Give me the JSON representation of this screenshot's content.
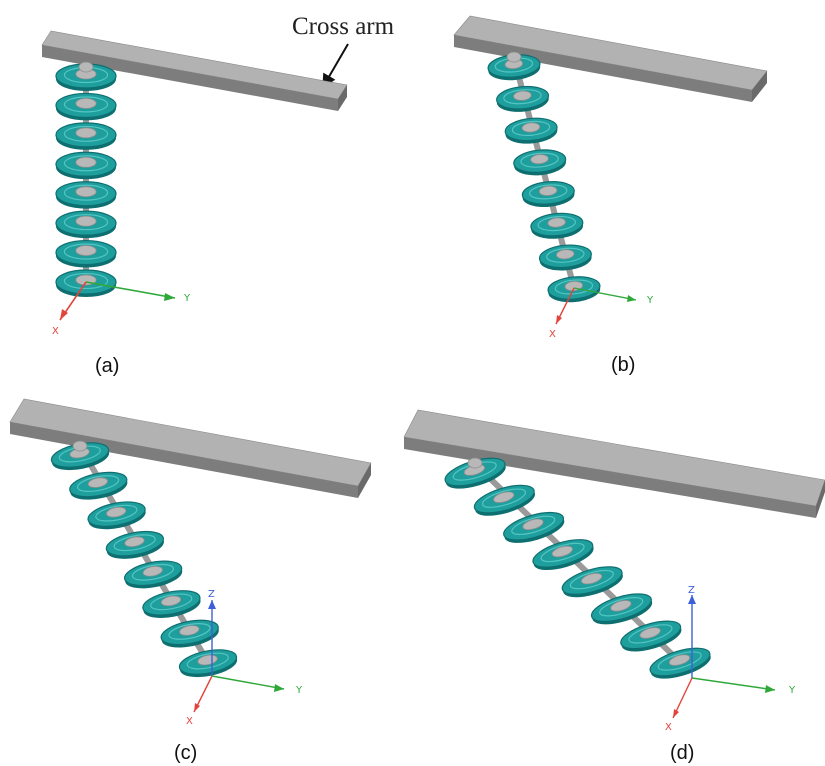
{
  "callout": {
    "text": "Cross arm"
  },
  "panels": [
    {
      "label": "(a)",
      "axes": [
        "Y",
        "X"
      ]
    },
    {
      "label": "(b)",
      "axes": [
        "Y",
        "X"
      ]
    },
    {
      "label": "(c)",
      "axes": [
        "Y",
        "X",
        "Z"
      ]
    },
    {
      "label": "(d)",
      "axes": [
        "Y",
        "X",
        "Z"
      ]
    }
  ],
  "colors": {
    "crossarm_top": "#b2b2b2",
    "crossarm_front": "#7d7d7d",
    "crossarm_end": "#6a6a6a",
    "disc_fill": "#1f9e9e",
    "disc_edge": "#0e6f70",
    "disc_highlight": "#5fd0cc",
    "cap": "#b8b8b8",
    "axis_y": "#2fa83a",
    "axis_x": "#e2443c",
    "axis_z": "#3d5fd8"
  },
  "icons": {
    "arrow": "callout-arrow-icon"
  }
}
